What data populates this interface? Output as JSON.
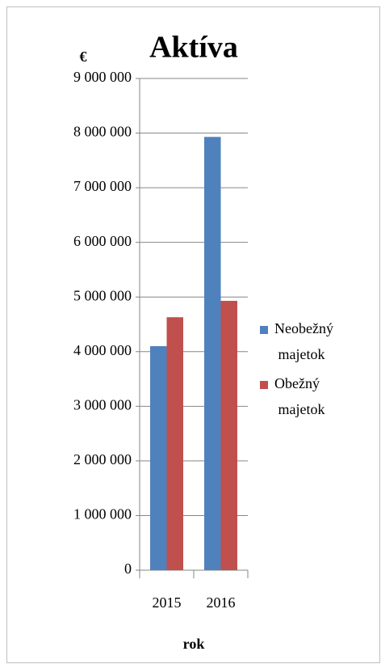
{
  "chart_data": {
    "type": "bar",
    "title": "Aktíva",
    "y_axis_label": "€",
    "x_axis_label": "rok",
    "categories": [
      "2015",
      "2016"
    ],
    "series": [
      {
        "name": "Neobežný majetok",
        "color": "#4f81bd",
        "values": [
          4100000,
          7930000
        ]
      },
      {
        "name": "Obežný majetok",
        "color": "#c0504d",
        "values": [
          4630000,
          4930000
        ]
      }
    ],
    "ylim": [
      0,
      9000000
    ],
    "yticks": [
      {
        "value": 0,
        "label": "0"
      },
      {
        "value": 1000000,
        "label": "1 000 000"
      },
      {
        "value": 2000000,
        "label": "2 000 000"
      },
      {
        "value": 3000000,
        "label": "3 000 000"
      },
      {
        "value": 4000000,
        "label": "4 000 000"
      },
      {
        "value": 5000000,
        "label": "5 000 000"
      },
      {
        "value": 6000000,
        "label": "6 000 000"
      },
      {
        "value": 7000000,
        "label": "7 000 000"
      },
      {
        "value": 8000000,
        "label": "8 000 000"
      },
      {
        "value": 9000000,
        "label": "9 000 000"
      }
    ],
    "grid": true,
    "legend": "right"
  }
}
